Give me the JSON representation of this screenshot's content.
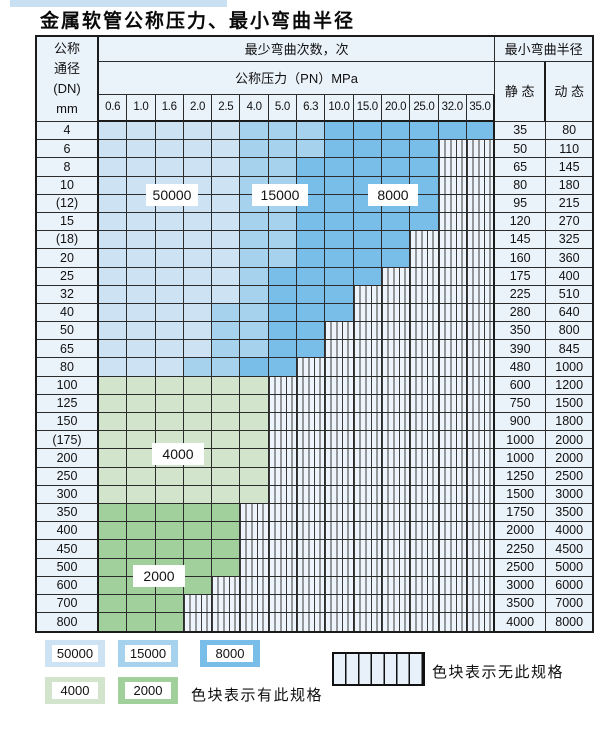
{
  "page": {
    "title": "金属软管公称压力、最小弯曲半径"
  },
  "colors": {
    "c5": "#cde3f4",
    "c1": "#a6d2ee",
    "c8": "#79bee8",
    "c4": "#d2e5cc",
    "c2": "#a2d09d",
    "panel": "#eaf2fa",
    "stripe_bg": "#eef4fb",
    "top_strip": "#c9e0f2"
  },
  "legend_map": {
    "5": "50000",
    "1": "15000",
    "8": "8000",
    "4": "4000",
    "2": "2000",
    "n": "none"
  },
  "table": {
    "dn_header_lines": [
      "公称",
      "通径",
      "(DN)",
      "mm"
    ],
    "bend_count_header": "最少弯曲次数，次",
    "radius_header": "最小弯曲半径",
    "pn_header": "公称压力（PN）MPa",
    "static_header": "静 态",
    "dynamic_header": "动 态",
    "pressures": [
      "0.6",
      "1.0",
      "1.6",
      "2.0",
      "2.5",
      "4.0",
      "5.0",
      "6.3",
      "10.0",
      "15.0",
      "20.0",
      "25.0",
      "32.0",
      "35.0"
    ],
    "rows": [
      {
        "dn": "4",
        "specs": "55555111888888",
        "static": "35",
        "dynamic": "80"
      },
      {
        "dn": "6",
        "specs": "555551118888nn",
        "static": "50",
        "dynamic": "110"
      },
      {
        "dn": "8",
        "specs": "555551188888nn",
        "static": "65",
        "dynamic": "145"
      },
      {
        "dn": "10",
        "specs": "555551188888nn",
        "static": "80",
        "dynamic": "180"
      },
      {
        "dn": "(12)",
        "specs": "555551188888nn",
        "static": "95",
        "dynamic": "215"
      },
      {
        "dn": "15",
        "specs": "555551188888nn",
        "static": "120",
        "dynamic": "270"
      },
      {
        "dn": "(18)",
        "specs": "55555118888nnn",
        "static": "145",
        "dynamic": "325"
      },
      {
        "dn": "20",
        "specs": "55555118888nnn",
        "static": "160",
        "dynamic": "360"
      },
      {
        "dn": "25",
        "specs": "5555518888nnnn",
        "static": "175",
        "dynamic": "400"
      },
      {
        "dn": "32",
        "specs": "555551888nnnnn",
        "static": "225",
        "dynamic": "510"
      },
      {
        "dn": "40",
        "specs": "555511888nnnnn",
        "static": "280",
        "dynamic": "640"
      },
      {
        "dn": "50",
        "specs": "55551188nnnnnn",
        "static": "350",
        "dynamic": "800"
      },
      {
        "dn": "65",
        "specs": "55551188nnnnnn",
        "static": "390",
        "dynamic": "845"
      },
      {
        "dn": "80",
        "specs": "5551188nnnnnnn",
        "static": "480",
        "dynamic": "1000"
      },
      {
        "dn": "100",
        "specs": "444444nnnnnnnn",
        "static": "600",
        "dynamic": "1200"
      },
      {
        "dn": "125",
        "specs": "444444nnnnnnnn",
        "static": "750",
        "dynamic": "1500"
      },
      {
        "dn": "150",
        "specs": "444444nnnnnnnn",
        "static": "900",
        "dynamic": "1800"
      },
      {
        "dn": "(175)",
        "specs": "444444nnnnnnnn",
        "static": "1000",
        "dynamic": "2000"
      },
      {
        "dn": "200",
        "specs": "444444nnnnnnnn",
        "static": "1000",
        "dynamic": "2000"
      },
      {
        "dn": "250",
        "specs": "444444nnnnnnnn",
        "static": "1250",
        "dynamic": "2500"
      },
      {
        "dn": "300",
        "specs": "444444nnnnnnnn",
        "static": "1500",
        "dynamic": "3000"
      },
      {
        "dn": "350",
        "specs": "22222nnnnnnnnn",
        "static": "1750",
        "dynamic": "3500"
      },
      {
        "dn": "400",
        "specs": "22222nnnnnnnnn",
        "static": "2000",
        "dynamic": "4000"
      },
      {
        "dn": "450",
        "specs": "22222nnnnnnnnn",
        "static": "2250",
        "dynamic": "4500"
      },
      {
        "dn": "500",
        "specs": "22222nnnnnnnnn",
        "static": "2500",
        "dynamic": "5000"
      },
      {
        "dn": "600",
        "specs": "2222nnnnnnnnnn",
        "static": "3000",
        "dynamic": "6000"
      },
      {
        "dn": "700",
        "specs": "222nnnnnnnnnnn",
        "static": "3500",
        "dynamic": "7000"
      },
      {
        "dn": "800",
        "specs": "222nnnnnnnnnnn",
        "static": "4000",
        "dynamic": "8000"
      }
    ]
  },
  "region_labels": {
    "r50000": "50000",
    "r15000": "15000",
    "r8000": "8000",
    "r4000": "4000",
    "r2000": "2000"
  },
  "legend": {
    "items": [
      {
        "label": "50000",
        "color_key": "c5"
      },
      {
        "label": "15000",
        "color_key": "c1"
      },
      {
        "label": "8000",
        "color_key": "c8"
      },
      {
        "label": "4000",
        "color_key": "c4"
      },
      {
        "label": "2000",
        "color_key": "c2"
      }
    ],
    "note_present": "色块表示有此规格",
    "note_absent": "色块表示无此规格"
  }
}
